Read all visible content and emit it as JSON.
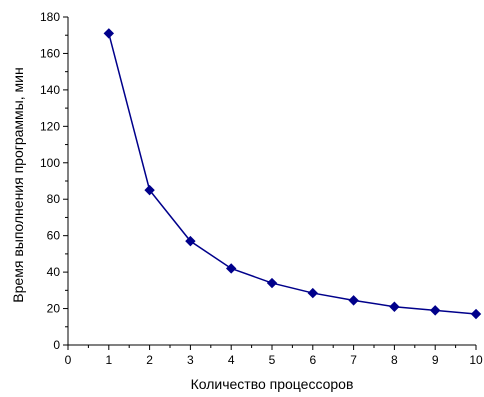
{
  "chart_data": {
    "type": "line",
    "title": "",
    "xlabel": "Количество процессоров",
    "ylabel": "Время выполнения программы, мин",
    "xlim": [
      0,
      10
    ],
    "ylim": [
      0,
      180
    ],
    "x_ticks": [
      0,
      1,
      2,
      3,
      4,
      5,
      6,
      7,
      8,
      9,
      10
    ],
    "y_ticks": [
      0,
      20,
      40,
      60,
      80,
      100,
      120,
      140,
      160,
      180
    ],
    "grid": false,
    "legend": "none",
    "series": [
      {
        "x": [
          1,
          2,
          3,
          4,
          5,
          6,
          7,
          8,
          9,
          10
        ],
        "y": [
          171,
          85,
          57,
          42,
          34,
          28.5,
          24.5,
          21,
          19,
          17
        ],
        "color": "#00008B",
        "marker": "diamond"
      }
    ]
  }
}
